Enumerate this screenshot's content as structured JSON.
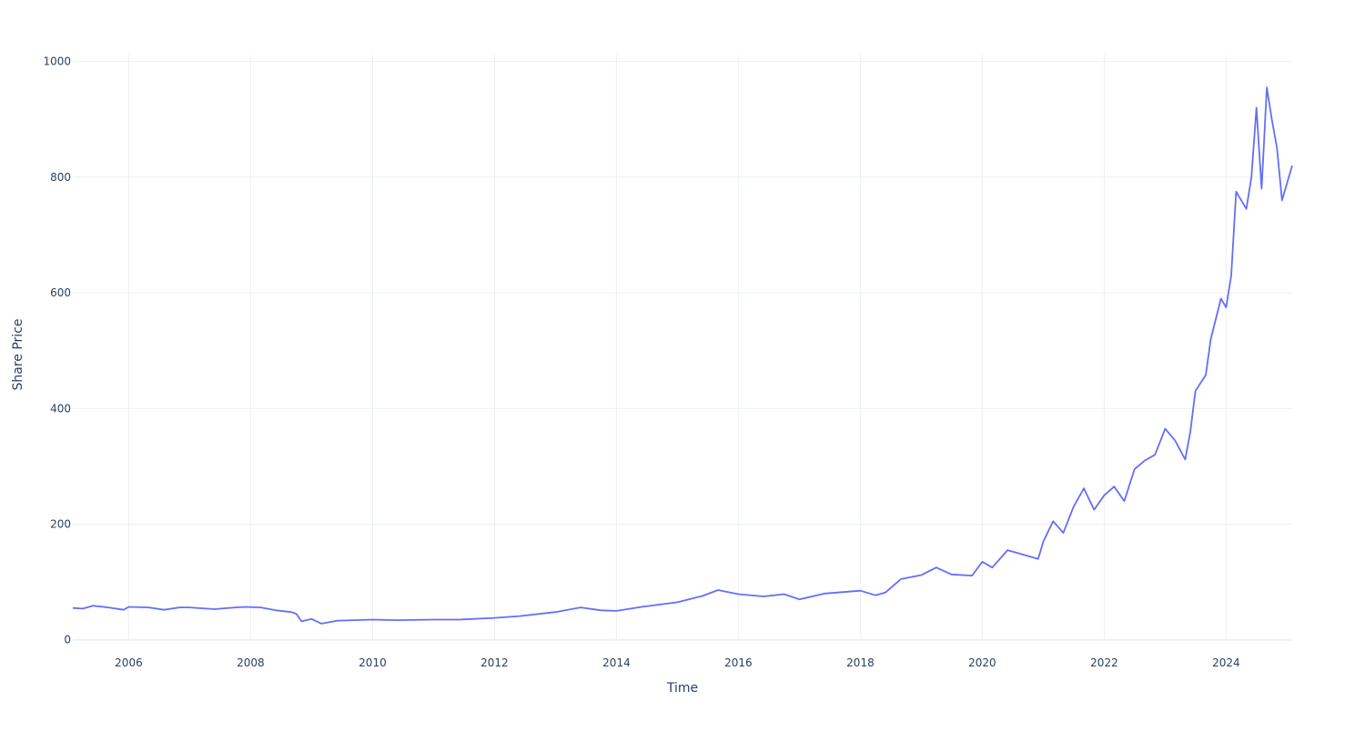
{
  "chart_data": {
    "type": "line",
    "xlabel": "Time",
    "ylabel": "Share Price",
    "title": "",
    "xlim": [
      "2005-01-31",
      "2025-01-31"
    ],
    "ylim": [
      -2,
      1012
    ],
    "x_ticks": [
      "2006",
      "2008",
      "2010",
      "2012",
      "2014",
      "2016",
      "2018",
      "2020",
      "2022",
      "2024"
    ],
    "y_ticks": [
      0,
      200,
      400,
      600,
      800,
      1000
    ],
    "grid": true,
    "legend": "none",
    "series": [
      {
        "color": "#636efa",
        "points": [
          [
            "2005-01-31",
            55
          ],
          [
            "2005-04-01",
            54
          ],
          [
            "2005-06-01",
            59
          ],
          [
            "2005-09-01",
            56
          ],
          [
            "2005-12-01",
            52
          ],
          [
            "2006-01-01",
            57
          ],
          [
            "2006-05-01",
            56
          ],
          [
            "2006-08-01",
            52
          ],
          [
            "2006-11-01",
            56
          ],
          [
            "2007-01-01",
            56
          ],
          [
            "2007-06-01",
            53
          ],
          [
            "2007-10-01",
            56
          ],
          [
            "2007-12-01",
            57
          ],
          [
            "2008-03-01",
            56
          ],
          [
            "2008-06-01",
            51
          ],
          [
            "2008-09-01",
            48
          ],
          [
            "2008-10-01",
            45
          ],
          [
            "2008-11-01",
            32
          ],
          [
            "2009-01-01",
            36
          ],
          [
            "2009-03-01",
            28
          ],
          [
            "2009-06-01",
            33
          ],
          [
            "2010-01-01",
            35
          ],
          [
            "2010-06-01",
            34
          ],
          [
            "2011-01-01",
            35
          ],
          [
            "2011-06-01",
            35
          ],
          [
            "2012-01-01",
            38
          ],
          [
            "2012-06-01",
            41
          ],
          [
            "2013-01-01",
            48
          ],
          [
            "2013-06-01",
            56
          ],
          [
            "2013-10-01",
            51
          ],
          [
            "2014-01-01",
            50
          ],
          [
            "2014-06-01",
            57
          ],
          [
            "2015-01-01",
            65
          ],
          [
            "2015-06-01",
            76
          ],
          [
            "2015-09-01",
            86
          ],
          [
            "2016-01-01",
            79
          ],
          [
            "2016-06-01",
            75
          ],
          [
            "2016-10-01",
            79
          ],
          [
            "2017-01-01",
            70
          ],
          [
            "2017-06-01",
            80
          ],
          [
            "2018-01-01",
            85
          ],
          [
            "2018-04-01",
            77
          ],
          [
            "2018-06-01",
            82
          ],
          [
            "2018-09-01",
            105
          ],
          [
            "2019-01-01",
            112
          ],
          [
            "2019-04-01",
            125
          ],
          [
            "2019-07-01",
            113
          ],
          [
            "2019-11-01",
            111
          ],
          [
            "2020-01-01",
            135
          ],
          [
            "2020-03-01",
            125
          ],
          [
            "2020-06-01",
            155
          ],
          [
            "2020-10-01",
            145
          ],
          [
            "2020-12-01",
            140
          ],
          [
            "2021-01-01",
            170
          ],
          [
            "2021-03-01",
            205
          ],
          [
            "2021-05-01",
            185
          ],
          [
            "2021-07-01",
            230
          ],
          [
            "2021-09-01",
            262
          ],
          [
            "2021-11-01",
            225
          ],
          [
            "2022-01-01",
            250
          ],
          [
            "2022-03-01",
            265
          ],
          [
            "2022-05-01",
            240
          ],
          [
            "2022-07-01",
            295
          ],
          [
            "2022-09-01",
            310
          ],
          [
            "2022-11-01",
            320
          ],
          [
            "2023-01-01",
            365
          ],
          [
            "2023-03-01",
            345
          ],
          [
            "2023-05-01",
            312
          ],
          [
            "2023-06-01",
            360
          ],
          [
            "2023-07-01",
            430
          ],
          [
            "2023-09-01",
            458
          ],
          [
            "2023-10-01",
            520
          ],
          [
            "2023-12-01",
            590
          ],
          [
            "2024-01-01",
            575
          ],
          [
            "2024-02-01",
            630
          ],
          [
            "2024-03-01",
            775
          ],
          [
            "2024-05-01",
            745
          ],
          [
            "2024-06-01",
            800
          ],
          [
            "2024-07-01",
            920
          ],
          [
            "2024-08-01",
            780
          ],
          [
            "2024-09-01",
            955
          ],
          [
            "2024-10-01",
            900
          ],
          [
            "2024-11-01",
            850
          ],
          [
            "2024-12-01",
            760
          ],
          [
            "2025-01-31",
            820
          ]
        ]
      }
    ]
  }
}
